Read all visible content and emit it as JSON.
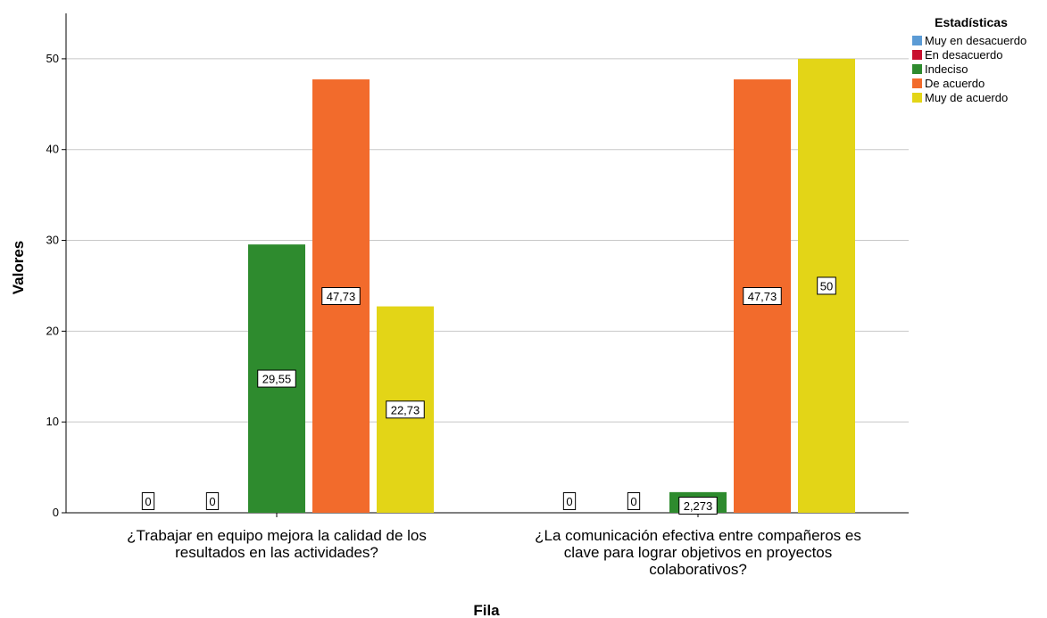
{
  "chart_data": {
    "type": "bar",
    "title": "",
    "xlabel": "Fila",
    "ylabel": "Valores",
    "ylim": [
      0,
      55
    ],
    "yticks": [
      0,
      10,
      20,
      30,
      40,
      50
    ],
    "grid": true,
    "legend_title": "Estadísticas",
    "legend_position": "top-right",
    "categories": [
      [
        "¿Trabajar en equipo mejora la calidad de los",
        "resultados en las actividades?"
      ],
      [
        "¿La comunicación efectiva entre compañeros es",
        "clave para lograr objetivos en proyectos",
        "colaborativos?"
      ]
    ],
    "series": [
      {
        "name": "Muy en desacuerdo",
        "color": "#5b9bd5",
        "values": [
          0,
          0
        ],
        "labels": [
          "0",
          "0"
        ]
      },
      {
        "name": "En desacuerdo",
        "color": "#c8102e",
        "values": [
          0,
          0
        ],
        "labels": [
          "0",
          "0"
        ]
      },
      {
        "name": "Indeciso",
        "color": "#2e8b2e",
        "values": [
          29.55,
          2.273
        ],
        "labels": [
          "29,55",
          "2,273"
        ]
      },
      {
        "name": "De acuerdo",
        "color": "#f26b2c",
        "values": [
          47.73,
          47.73
        ],
        "labels": [
          "47,73",
          "47,73"
        ]
      },
      {
        "name": "Muy de acuerdo",
        "color": "#e3d517",
        "values": [
          22.73,
          50
        ],
        "labels": [
          "22,73",
          "50"
        ]
      }
    ]
  }
}
